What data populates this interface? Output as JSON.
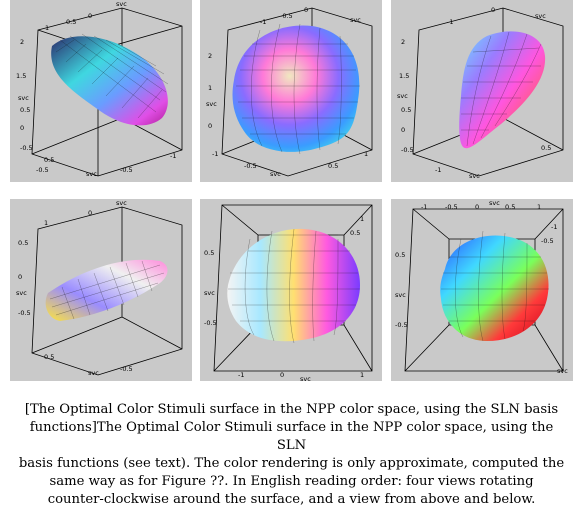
{
  "panels": [
    {
      "ticks": [
        "1",
        "0.5",
        "0",
        "1",
        "0.5",
        "0",
        "-0.5",
        "-1",
        "2",
        "1.5",
        "1",
        "0.5",
        "0",
        "-0.5",
        "-1",
        "0.5",
        "-0.5",
        "-1"
      ],
      "labels": [
        "svc",
        "svc",
        "svc"
      ]
    },
    {
      "ticks": [
        "-1",
        "-0.5",
        "0",
        "0.5",
        "1",
        "-1",
        "-0.5",
        "0",
        "0.5",
        "1",
        "2",
        "1.5",
        "1",
        "0.5",
        "0",
        "-0.5",
        "-1"
      ],
      "labels": [
        "svc",
        "svc",
        "svc"
      ]
    },
    {
      "ticks": [
        "-1",
        "-0.5",
        "0",
        "0.5",
        "1",
        "2",
        "1.5",
        "1",
        "0.5",
        "0",
        "-0.5",
        "-1",
        "0",
        "0.5",
        "-1",
        "-0.5",
        "1"
      ],
      "labels": [
        "svc",
        "svc",
        "svc"
      ]
    },
    {
      "ticks": [
        "1",
        "0.5",
        "0",
        "-0.5",
        "-1",
        "1",
        "0.5",
        "0",
        "-0.5",
        "-1",
        "0.5",
        "0",
        "-0.5",
        "0.5",
        "-0.5"
      ],
      "labels": [
        "svc",
        "svc",
        "svc"
      ]
    },
    {
      "ticks": [
        "-1",
        "-0.5",
        "0",
        "0.5",
        "1",
        "-1",
        "-0.5",
        "0",
        "0.5",
        "1",
        "0.5",
        "0",
        "-0.5",
        "1",
        "0.5"
      ],
      "labels": [
        "svc",
        "svc",
        "svc"
      ]
    },
    {
      "ticks": [
        "-1",
        "-0.5",
        "0",
        "0.5",
        "1",
        "1",
        "0.5",
        "0",
        "-0.5",
        "-1",
        "-1",
        "-0.5",
        "0",
        "0.5",
        "1"
      ],
      "labels": [
        "svc",
        "svc",
        "svc"
      ]
    }
  ],
  "caption": {
    "line1": "[The Optimal Color Stimuli surface in the NPP color space, using the SLN basis",
    "line2": "functions]The Optimal Color Stimuli surface in the NPP color space, using the SLN",
    "line3": "basis functions (see text). The color rendering is only approximate, computed the",
    "line4": "same way as for Figure ??. In English reading order: four views rotating",
    "line5": "counter-clockwise around the surface, and a view from above and below."
  }
}
